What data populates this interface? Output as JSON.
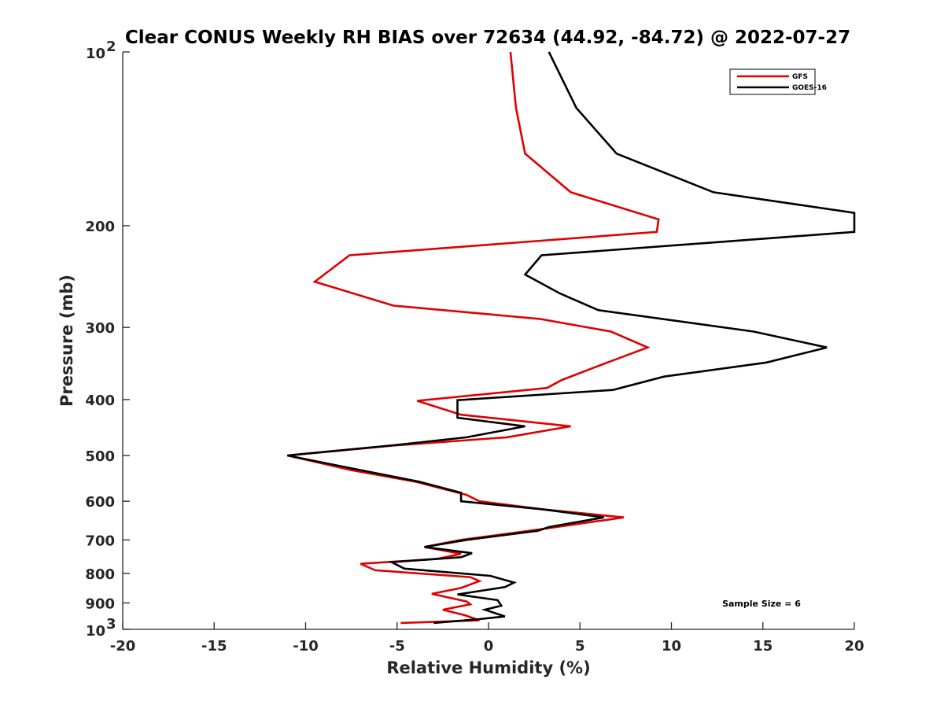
{
  "chart_data": {
    "type": "line",
    "title": "Clear CONUS Weekly RH BIAS over 72634 (44.92, -84.72) @ 2022-07-27",
    "xlabel": "Relative Humidity (%)",
    "ylabel": "Pressure (mb)",
    "xlim": [
      -20,
      20
    ],
    "ylim": [
      100,
      1000
    ],
    "yscale": "log",
    "x_ticks": [
      -20,
      -15,
      -10,
      -5,
      0,
      5,
      10,
      15,
      20
    ],
    "x_tick_labels": [
      "-20",
      "-15",
      "-10",
      "-5",
      "0",
      "5",
      "10",
      "15",
      "20"
    ],
    "y_ticks": [
      {
        "value": 100,
        "base": "10",
        "exp": "2"
      },
      {
        "value": 200,
        "label": "200"
      },
      {
        "value": 300,
        "label": "300"
      },
      {
        "value": 400,
        "label": "400"
      },
      {
        "value": 500,
        "label": "500"
      },
      {
        "value": 600,
        "label": "600"
      },
      {
        "value": 700,
        "label": "700"
      },
      {
        "value": 800,
        "label": "800"
      },
      {
        "value": 900,
        "label": "900"
      },
      {
        "value": 1000,
        "base": "10",
        "exp": "3"
      }
    ],
    "legend_position": "top-right",
    "annotation": "Sample Size = 6",
    "series": [
      {
        "name": "GFS",
        "color": "#e00000",
        "points": [
          [
            1.2,
            100
          ],
          [
            1.5,
            125
          ],
          [
            2.0,
            150
          ],
          [
            4.5,
            175
          ],
          [
            9.3,
            195
          ],
          [
            9.2,
            205
          ],
          [
            -7.6,
            225
          ],
          [
            -9.5,
            250
          ],
          [
            -5.2,
            275
          ],
          [
            2.8,
            290
          ],
          [
            6.7,
            305
          ],
          [
            8.7,
            325
          ],
          [
            6.5,
            345
          ],
          [
            4.0,
            370
          ],
          [
            3.2,
            382
          ],
          [
            -3.9,
            402
          ],
          [
            -1.5,
            425
          ],
          [
            4.5,
            445
          ],
          [
            1.0,
            465
          ],
          [
            -5.0,
            480
          ],
          [
            -11.0,
            500
          ],
          [
            -7.5,
            530
          ],
          [
            -4.0,
            555
          ],
          [
            -1.2,
            585
          ],
          [
            -0.5,
            600
          ],
          [
            3.0,
            620
          ],
          [
            7.4,
            640
          ],
          [
            3.0,
            670
          ],
          [
            -1.5,
            700
          ],
          [
            -3.5,
            720
          ],
          [
            -1.5,
            740
          ],
          [
            -2.8,
            755
          ],
          [
            -7.0,
            770
          ],
          [
            -6.2,
            790
          ],
          [
            -1.0,
            812
          ],
          [
            -0.5,
            825
          ],
          [
            -1.5,
            848
          ],
          [
            -3.1,
            868
          ],
          [
            -1.2,
            895
          ],
          [
            -1.0,
            905
          ],
          [
            -2.5,
            925
          ],
          [
            -1.3,
            945
          ],
          [
            -0.5,
            965
          ],
          [
            -4.8,
            975
          ]
        ]
      },
      {
        "name": "GOES-16",
        "color": "#000000",
        "points": [
          [
            3.3,
            100
          ],
          [
            4.8,
            125
          ],
          [
            7.0,
            150
          ],
          [
            12.3,
            175
          ],
          [
            20.0,
            190
          ],
          [
            20.0,
            205
          ],
          [
            2.9,
            225
          ],
          [
            2.0,
            243
          ],
          [
            3.9,
            262
          ],
          [
            6.0,
            280
          ],
          [
            14.5,
            305
          ],
          [
            18.5,
            325
          ],
          [
            15.2,
            345
          ],
          [
            9.6,
            365
          ],
          [
            6.8,
            385
          ],
          [
            -1.7,
            401
          ],
          [
            -1.7,
            430
          ],
          [
            2.0,
            445
          ],
          [
            -1.2,
            465
          ],
          [
            -5.2,
            480
          ],
          [
            -11.0,
            500
          ],
          [
            -7.0,
            530
          ],
          [
            -3.8,
            555
          ],
          [
            -1.5,
            580
          ],
          [
            -1.5,
            600
          ],
          [
            3.0,
            620
          ],
          [
            6.3,
            640
          ],
          [
            3.3,
            665
          ],
          [
            2.7,
            675
          ],
          [
            -1.2,
            700
          ],
          [
            -3.5,
            720
          ],
          [
            -0.9,
            738
          ],
          [
            -1.5,
            750
          ],
          [
            -5.3,
            765
          ],
          [
            -4.6,
            785
          ],
          [
            0.1,
            808
          ],
          [
            1.4,
            830
          ],
          [
            0.9,
            845
          ],
          [
            -1.7,
            870
          ],
          [
            0.5,
            890
          ],
          [
            0.7,
            910
          ],
          [
            -0.2,
            925
          ],
          [
            0.9,
            950
          ],
          [
            -0.5,
            960
          ],
          [
            -3.0,
            975
          ]
        ]
      }
    ]
  }
}
